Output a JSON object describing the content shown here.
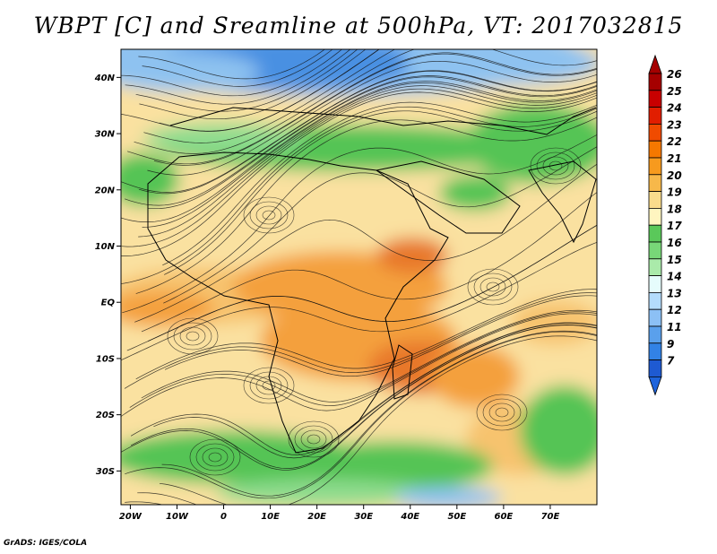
{
  "title": "WBPT [C] and Sreamline at 500hPa, VT: 2017032815",
  "credit": "GrADS: IGES/COLA",
  "map": {
    "lat_labels": [
      "40N",
      "30N",
      "20N",
      "10N",
      "EQ",
      "10S",
      "20S",
      "30S"
    ],
    "lat_values": [
      40,
      30,
      20,
      10,
      0,
      -10,
      -20,
      -30
    ],
    "lon_labels": [
      "20W",
      "10W",
      "0",
      "10E",
      "20E",
      "30E",
      "40E",
      "50E",
      "60E",
      "70E"
    ],
    "lon_values": [
      -20,
      -10,
      0,
      10,
      20,
      30,
      40,
      50,
      60,
      70
    ],
    "lat_range": [
      -36,
      45
    ],
    "lon_range": [
      -22,
      80
    ]
  },
  "colorbar": {
    "levels": [
      "26",
      "25",
      "24",
      "23",
      "22",
      "21",
      "20",
      "19",
      "18",
      "17",
      "16",
      "15",
      "14",
      "13",
      "12",
      "11",
      "9",
      "7"
    ],
    "colors": [
      "#a50000",
      "#c80000",
      "#e11e00",
      "#f04b00",
      "#f57800",
      "#f79a1e",
      "#f7b84a",
      "#fadc8c",
      "#fff5c0",
      "#5ac85a",
      "#78d778",
      "#aaeaaa",
      "#e6fcfc",
      "#b4dcfc",
      "#8cc0f5",
      "#5aa0ec",
      "#3282e6",
      "#1e5ad2"
    ],
    "top_arrow_color": "#a50000",
    "bottom_arrow_color": "#1e64dc"
  },
  "field_colors": {
    "pale_yellow": "#fae1a0",
    "light_orange": "#f7c36e",
    "orange": "#f4a03c",
    "dark_orange": "#e8782a",
    "green": "#55c455",
    "light_green": "#8edc8e",
    "light_blue": "#8ec2f0",
    "blue": "#4a90e2"
  }
}
